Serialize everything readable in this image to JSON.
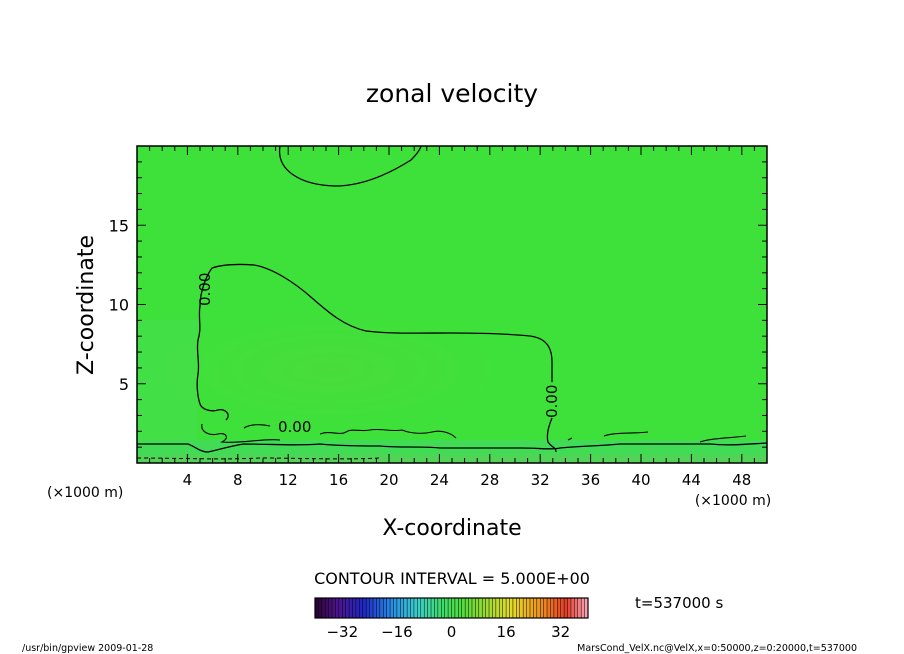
{
  "chart_data": {
    "type": "heatmap",
    "title": "zonal velocity",
    "xlabel": "X-coordinate",
    "ylabel": "Z-coordinate",
    "x_unit": "(×1000 m)",
    "z_unit": "(×1000 m)",
    "xlim": [
      0,
      50
    ],
    "ylim": [
      0,
      20
    ],
    "x_ticks": [
      "4",
      "8",
      "12",
      "16",
      "20",
      "24",
      "28",
      "32",
      "36",
      "40",
      "44",
      "48"
    ],
    "y_ticks": [
      "5",
      "10",
      "15"
    ],
    "contour_interval_text": "CONTOUR INTERVAL = 5.000E+00",
    "contour_labels": [
      "0.00",
      "0.00",
      "0.00"
    ],
    "time_text": "t=537000 s",
    "colorbar": {
      "min": -40,
      "max": 40,
      "ticks": [
        "−32",
        "−16",
        "0",
        "16",
        "32"
      ]
    },
    "field_color": "#3ee13a"
  },
  "footer": {
    "left": "/usr/bin/gpview  2009-01-28",
    "right": "MarsCond_VelX.nc@VelX,x=0:50000,z=0:20000,t=537000"
  }
}
